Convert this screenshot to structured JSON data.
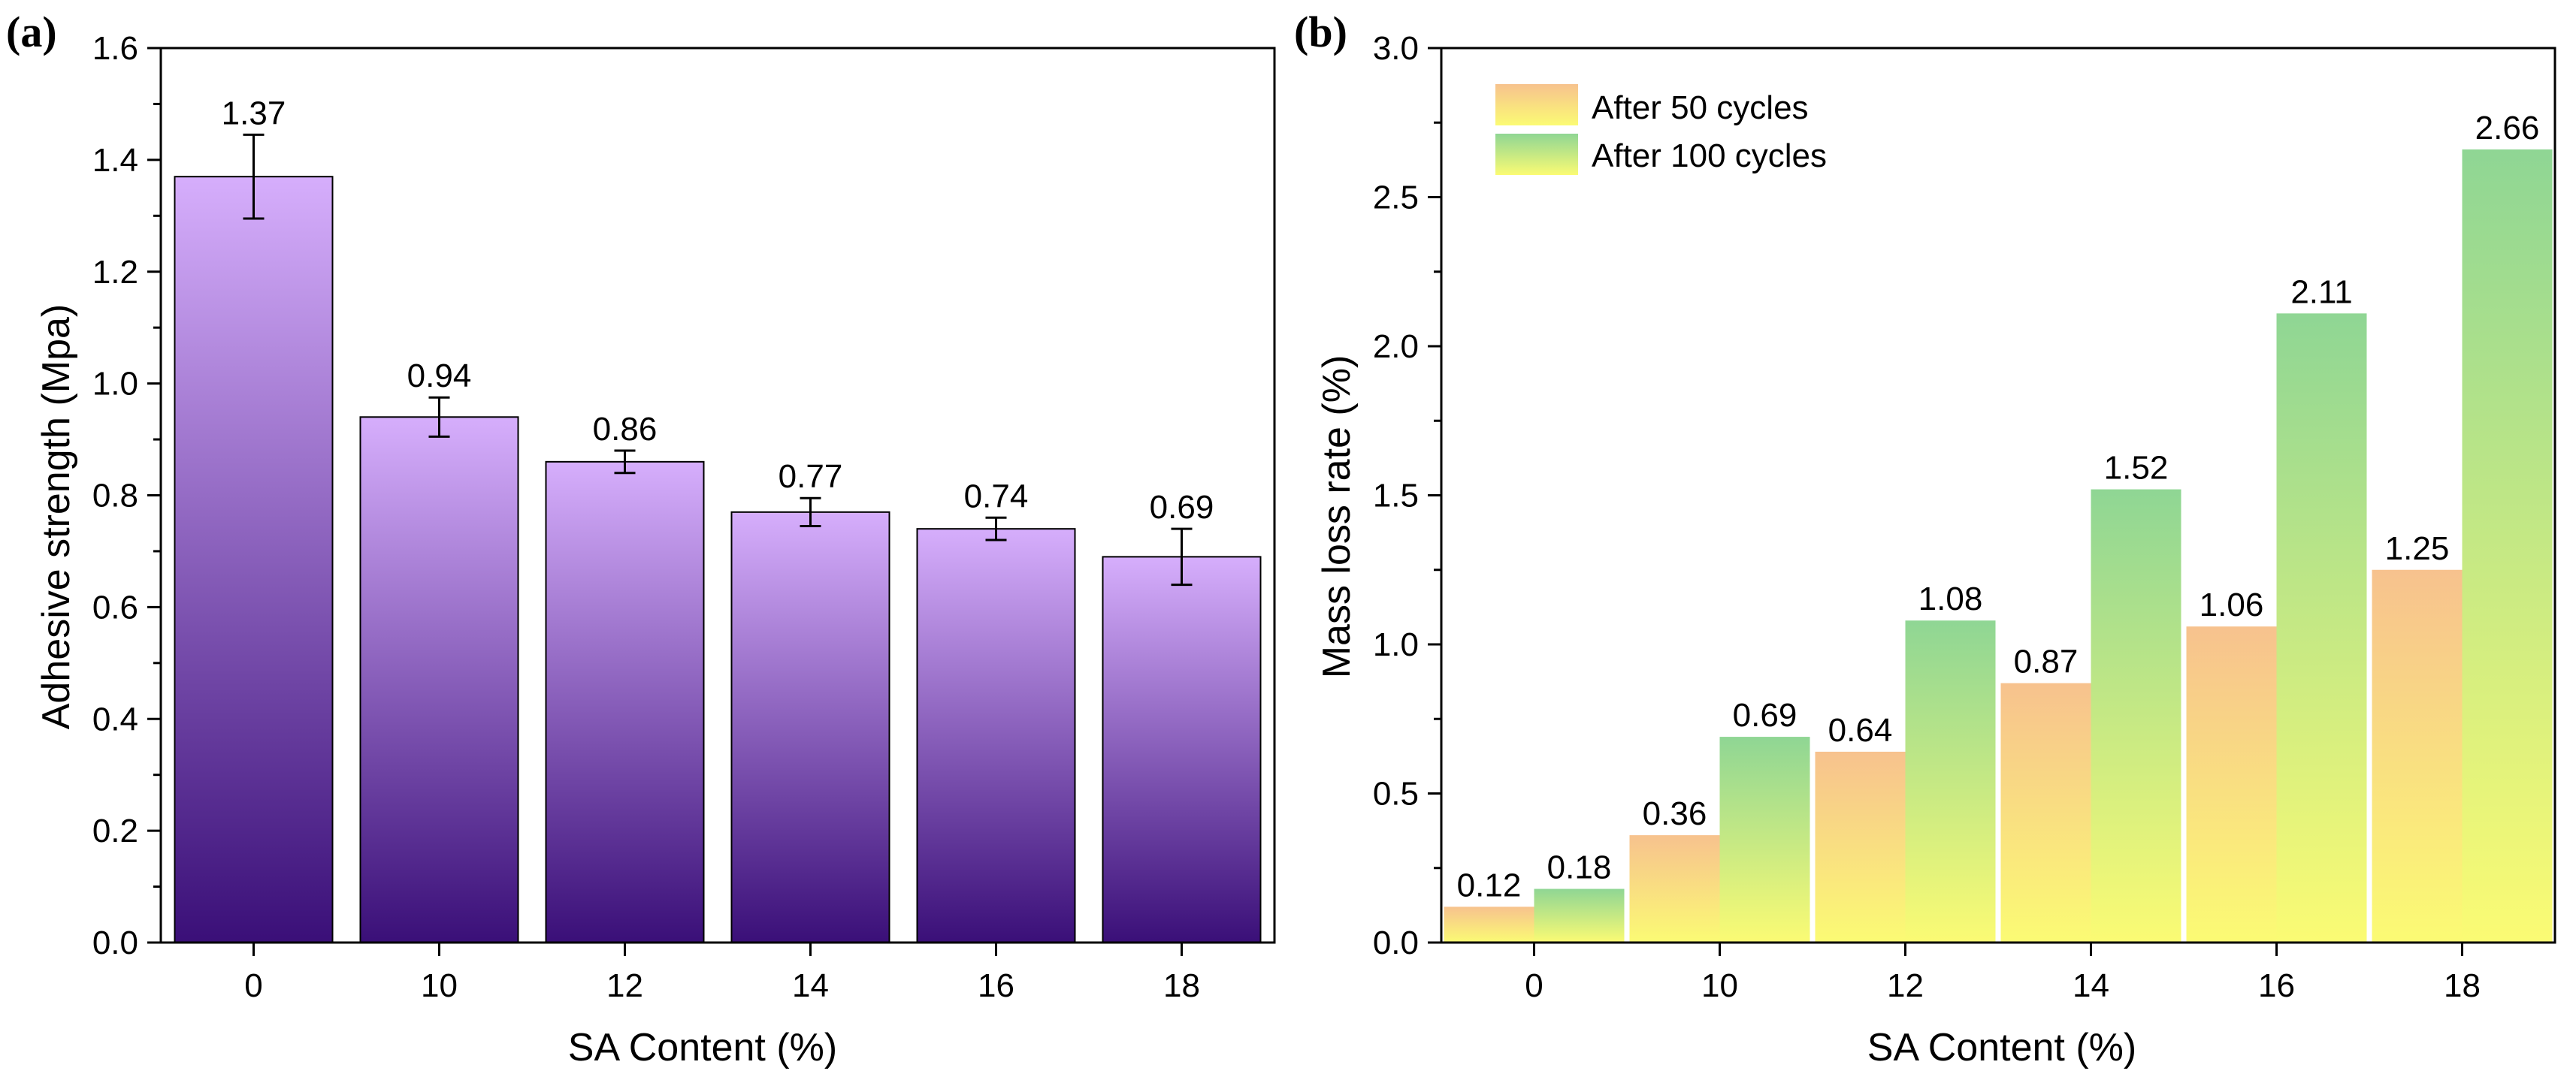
{
  "colors": {
    "purple_top": "#d6aefc",
    "purple_bottom": "#3a0f78",
    "orange_top": "#f7c28e",
    "yellow_bottom": "#fbfb74",
    "green_top": "#8fd694"
  },
  "chart_data": [
    {
      "type": "bar",
      "panel_label": "(a)",
      "categories": [
        "0",
        "10",
        "12",
        "14",
        "16",
        "18"
      ],
      "values": [
        1.37,
        0.94,
        0.86,
        0.77,
        0.74,
        0.69
      ],
      "value_labels": [
        "1.37",
        "0.94",
        "0.86",
        "0.77",
        "0.74",
        "0.69"
      ],
      "error": [
        0.075,
        0.035,
        0.02,
        0.025,
        0.02,
        0.05
      ],
      "xlabel": "SA Content (%)",
      "ylabel": "Adhesive strength (Mpa)",
      "ylim": [
        0,
        1.6
      ],
      "yticks": [
        "0.0",
        "0.2",
        "0.4",
        "0.6",
        "0.8",
        "1.0",
        "1.2",
        "1.4",
        "1.6"
      ]
    },
    {
      "type": "bar",
      "panel_label": "(b)",
      "categories": [
        "0",
        "10",
        "12",
        "14",
        "16",
        "18"
      ],
      "series": [
        {
          "name": "After 50 cycles",
          "values": [
            0.12,
            0.36,
            0.64,
            0.87,
            1.06,
            1.25
          ],
          "value_labels": [
            "0.12",
            "0.36",
            "0.64",
            "0.87",
            "1.06",
            "1.25"
          ]
        },
        {
          "name": "After 100 cycles",
          "values": [
            0.18,
            0.69,
            1.08,
            1.52,
            2.11,
            2.66
          ],
          "value_labels": [
            "0.18",
            "0.69",
            "1.08",
            "1.52",
            "2.11",
            "2.66"
          ]
        }
      ],
      "xlabel": "SA Content (%)",
      "ylabel": "Mass loss rate (%)",
      "ylim": [
        0,
        3.0
      ],
      "yticks": [
        "0.0",
        "0.5",
        "1.0",
        "1.5",
        "2.0",
        "2.5",
        "3.0"
      ],
      "legend_position": "top-left"
    }
  ]
}
